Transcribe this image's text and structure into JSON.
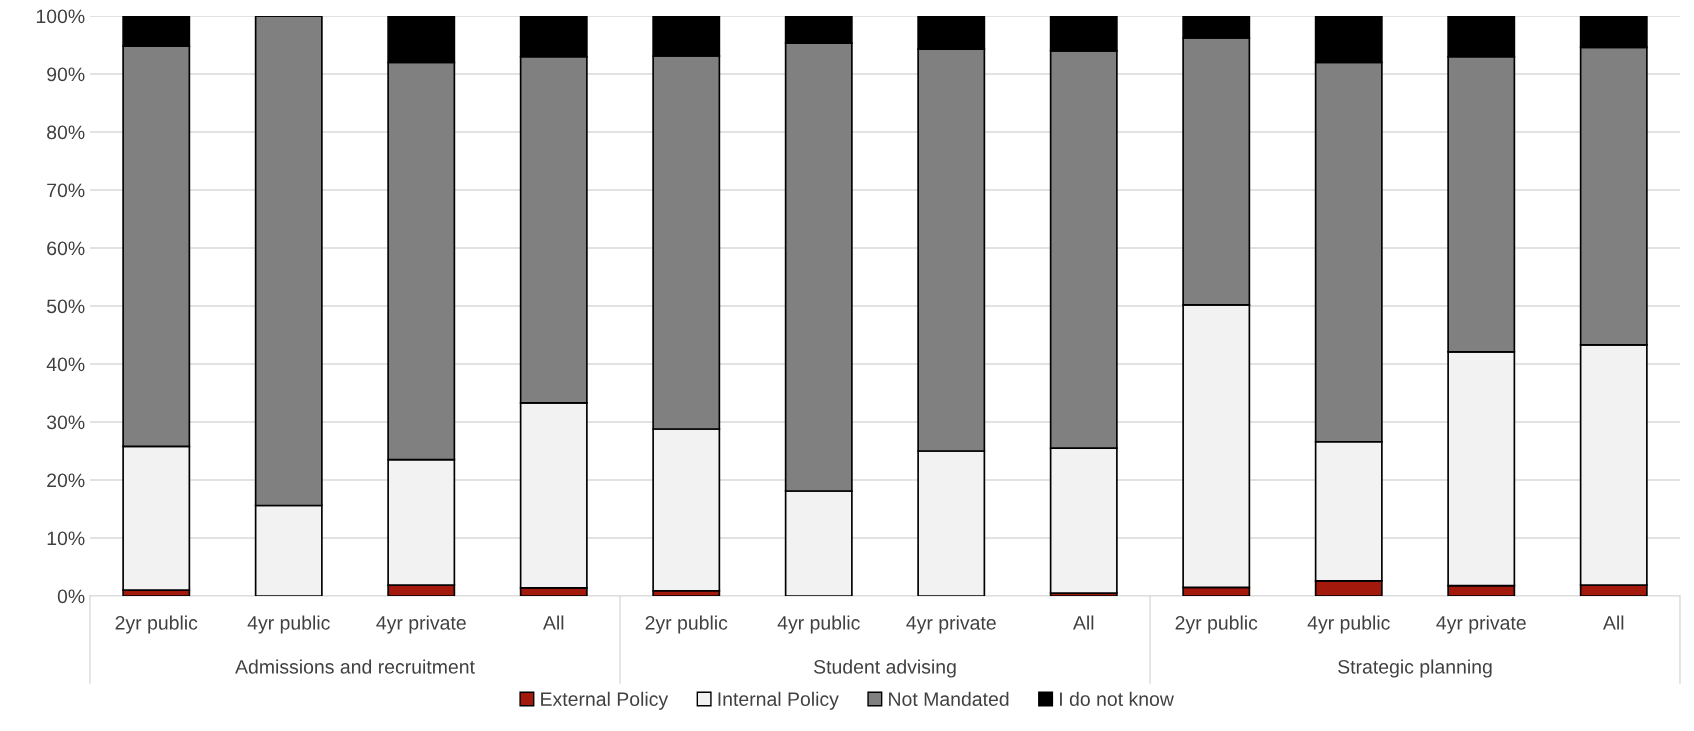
{
  "chart_data": {
    "type": "bar",
    "stacked": true,
    "categories": [
      "2yr public",
      "4yr public",
      "4yr private",
      "All",
      "2yr public",
      "4yr public",
      "4yr private",
      "All",
      "2yr public",
      "4yr public",
      "4yr private",
      "All"
    ],
    "annotations": [
      "Admissions and recruitment",
      "Student advising",
      "Strategic planning"
    ],
    "series": [
      {
        "name": "External Policy",
        "color": "#a31a0c",
        "values": [
          1,
          0,
          1.9,
          1.4,
          0.9,
          0,
          0,
          0.5,
          1.5,
          2.6,
          1.8,
          1.9
        ]
      },
      {
        "name": "Internal Policy",
        "color": "#f2f2f2",
        "values": [
          24.8,
          15.6,
          21.6,
          31.9,
          27.9,
          18.1,
          25,
          25,
          48.7,
          24,
          40.3,
          41.4
        ]
      },
      {
        "name": "Not Mandated",
        "color": "#808080",
        "values": [
          69,
          84.4,
          68.5,
          59.7,
          64.3,
          77.2,
          69.3,
          68.5,
          46,
          65.4,
          50.9,
          51.3
        ]
      },
      {
        "name": "I do not know",
        "color": "#000000",
        "values": [
          5.2,
          0,
          8,
          7,
          6.9,
          4.7,
          5.7,
          6,
          3.8,
          8,
          7,
          5.4
        ]
      }
    ],
    "ylim": [
      0,
      100
    ],
    "yticks": [
      {
        "value": 0,
        "label": "0%"
      },
      {
        "value": 10,
        "label": "10%"
      },
      {
        "value": 20,
        "label": "20%"
      },
      {
        "value": 30,
        "label": "30%"
      },
      {
        "value": 40,
        "label": "40%"
      },
      {
        "value": 50,
        "label": "50%"
      },
      {
        "value": 60,
        "label": "60%"
      },
      {
        "value": 70,
        "label": "70%"
      },
      {
        "value": 80,
        "label": "80%"
      },
      {
        "value": 90,
        "label": "90%"
      },
      {
        "value": 100,
        "label": "100%"
      }
    ],
    "grid": "y",
    "legend": "bottom"
  }
}
